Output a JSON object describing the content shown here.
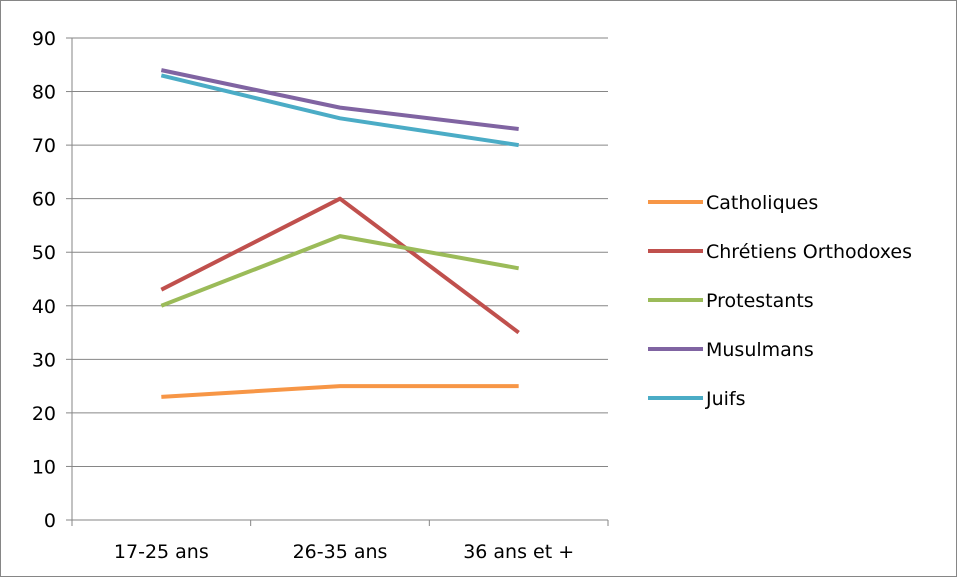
{
  "chart_data": {
    "type": "line",
    "title": "",
    "xlabel": "",
    "ylabel": "",
    "categories": [
      "17-25 ans",
      "26-35 ans",
      "36 ans et +"
    ],
    "ylim": [
      0,
      90
    ],
    "yticks": [
      0,
      10,
      20,
      30,
      40,
      50,
      60,
      70,
      80,
      90
    ],
    "grid": true,
    "legend_position": "right",
    "series": [
      {
        "name": "Catholiques",
        "color": "#F79646",
        "values": [
          23,
          25,
          25
        ]
      },
      {
        "name": "Chrétiens Orthodoxes",
        "color": "#C0504D",
        "values": [
          43,
          60,
          35
        ]
      },
      {
        "name": "Protestants",
        "color": "#9BBB59",
        "values": [
          40,
          53,
          47
        ]
      },
      {
        "name": "Musulmans",
        "color": "#8064A2",
        "values": [
          84,
          77,
          73
        ]
      },
      {
        "name": "Juifs",
        "color": "#4BACC6",
        "values": [
          83,
          75,
          70
        ]
      }
    ]
  }
}
